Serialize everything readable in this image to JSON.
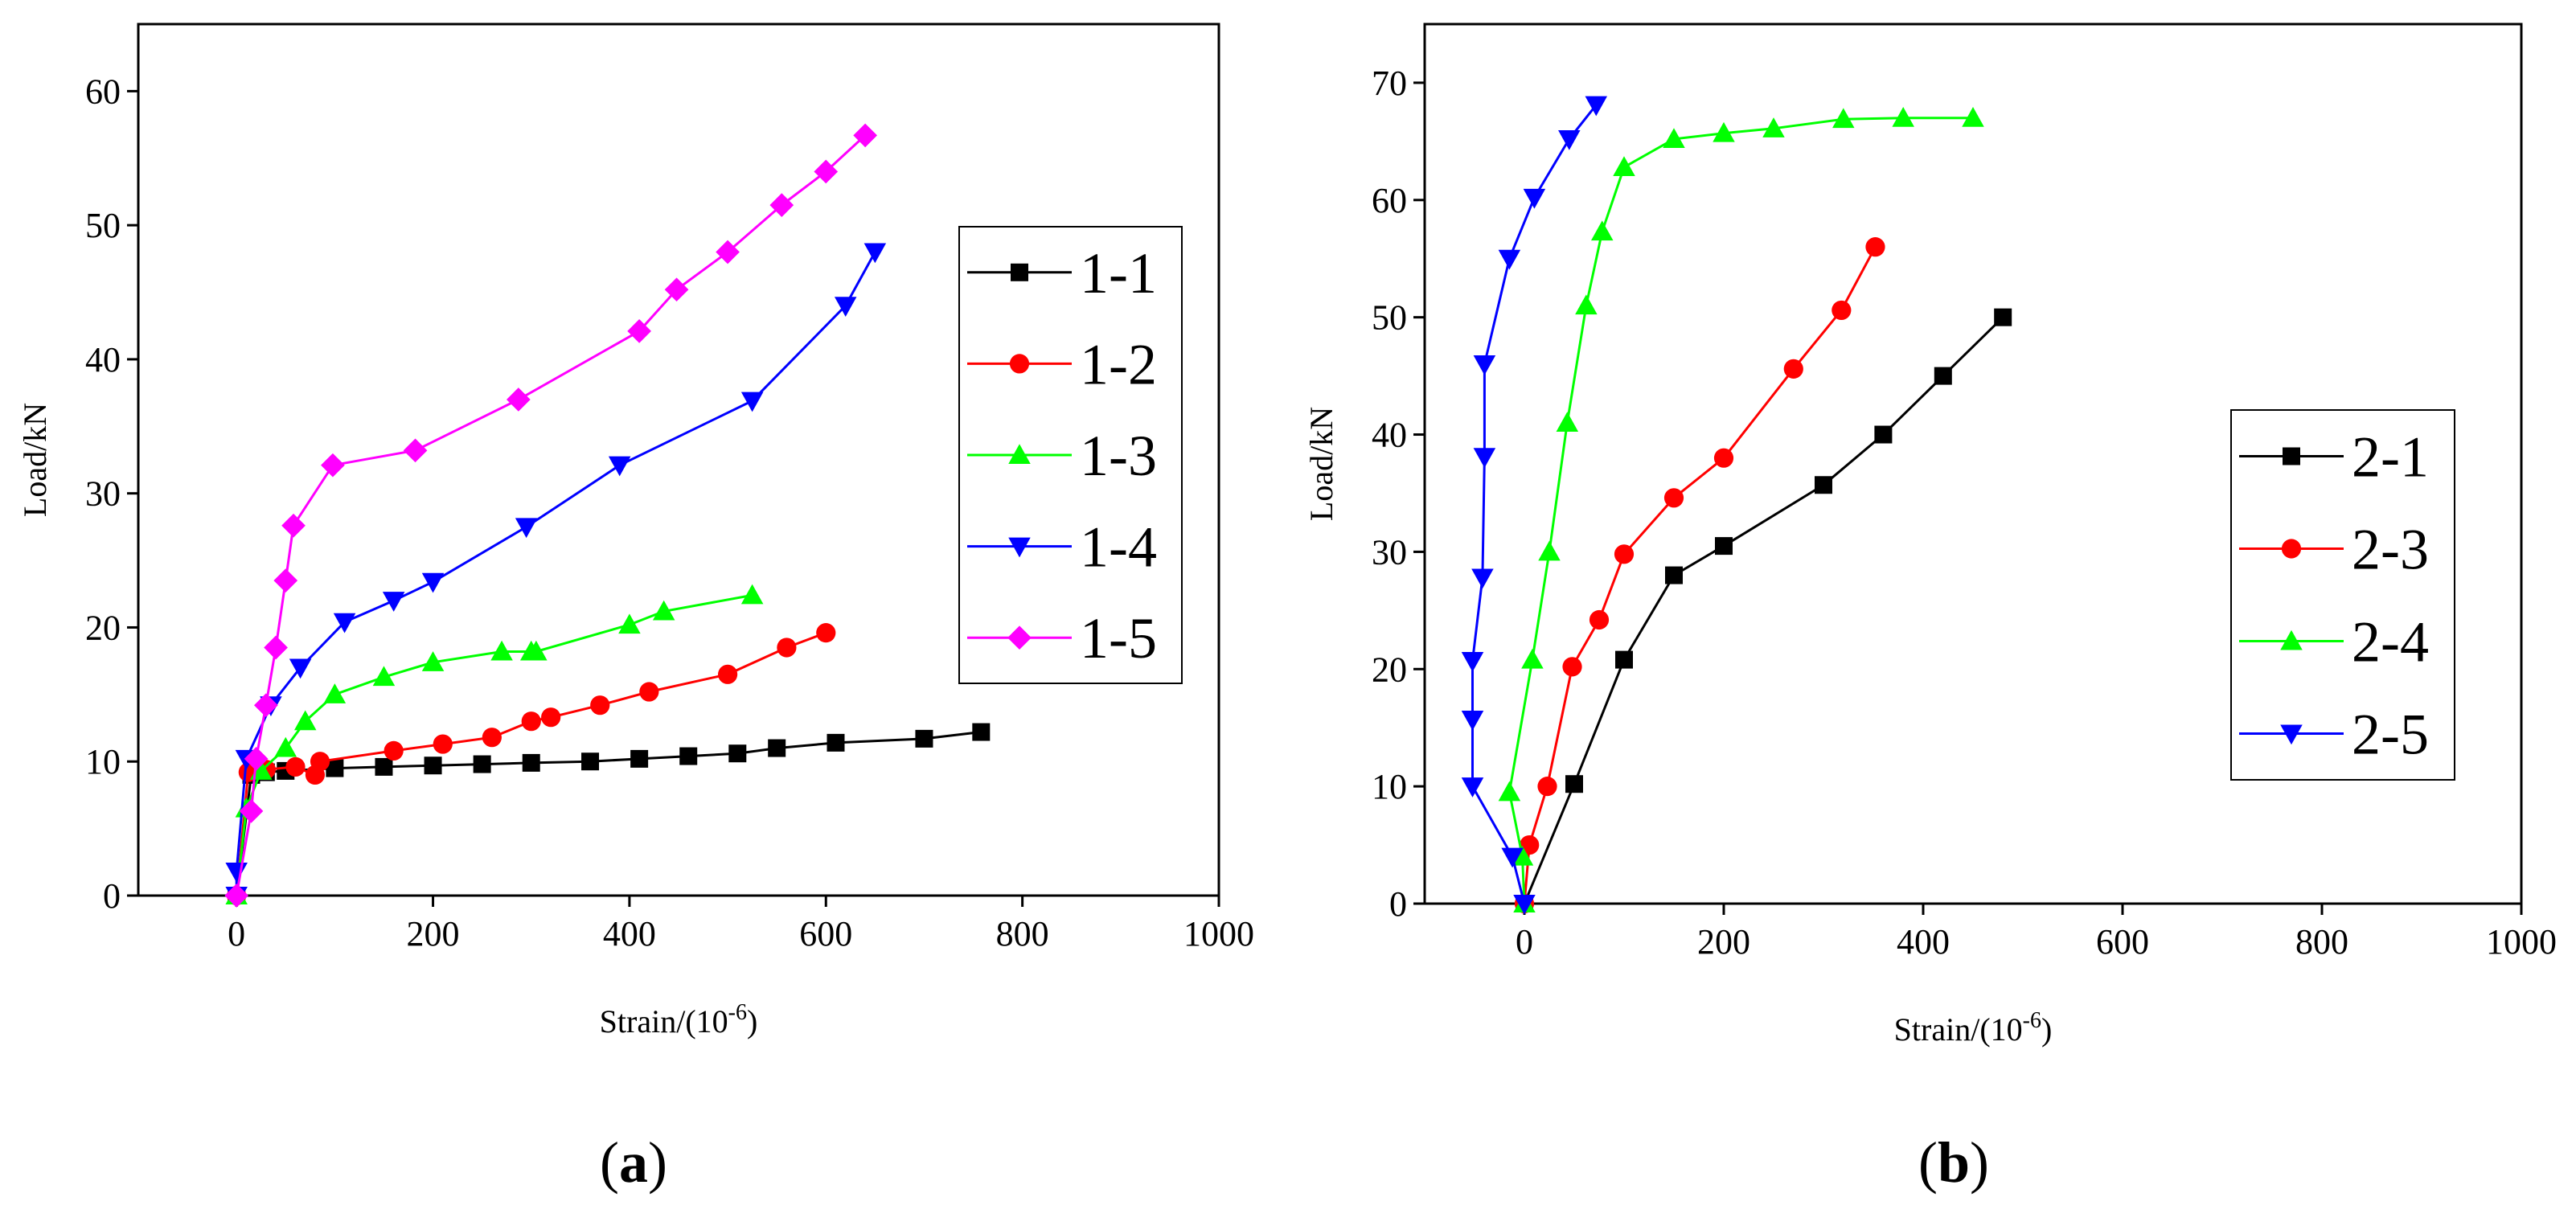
{
  "chart_data": [
    {
      "type": "line",
      "panel": "a",
      "xlabel": {
        "main": "Strain/(10",
        "exp": "-6",
        "close": ")"
      },
      "ylabel": "Load/kN",
      "xlim": [
        -100,
        1000
      ],
      "ylim": [
        0,
        65
      ],
      "xticks": [
        0,
        200,
        400,
        600,
        800,
        1000
      ],
      "yticks": [
        0,
        10,
        20,
        30,
        40,
        50,
        60
      ],
      "legend_position": "right",
      "series": [
        {
          "name": "1-1",
          "color": "#000000",
          "marker": "square",
          "x": [
            0,
            15,
            30,
            50,
            100,
            150,
            200,
            250,
            300,
            360,
            410,
            460,
            510,
            550,
            610,
            700,
            758
          ],
          "y": [
            0,
            9.0,
            9.2,
            9.3,
            9.5,
            9.6,
            9.7,
            9.8,
            9.9,
            10.0,
            10.2,
            10.4,
            10.6,
            11.0,
            11.4,
            11.7,
            12.2
          ]
        },
        {
          "name": "1-2",
          "color": "#ff0000",
          "marker": "circle",
          "x": [
            0,
            12,
            30,
            60,
            80,
            85,
            160,
            210,
            260,
            300,
            320,
            370,
            420,
            500,
            560,
            600
          ],
          "y": [
            0,
            9.2,
            9.4,
            9.6,
            9.0,
            10.0,
            10.8,
            11.3,
            11.8,
            13.0,
            13.3,
            14.2,
            15.2,
            16.5,
            18.5,
            19.6
          ]
        },
        {
          "name": "1-3",
          "color": "#00ff00",
          "marker": "triangle-up",
          "x": [
            0,
            10,
            25,
            50,
            70,
            100,
            150,
            200,
            270,
            300,
            305,
            400,
            435,
            525
          ],
          "y": [
            0,
            6.5,
            9.3,
            11.0,
            13.0,
            15.0,
            16.3,
            17.4,
            18.2,
            18.2,
            18.2,
            20.2,
            21.2,
            22.4
          ]
        },
        {
          "name": "1-4",
          "color": "#0000ff",
          "marker": "triangle-down",
          "x": [
            0,
            0,
            10,
            35,
            65,
            110,
            160,
            200,
            295,
            390,
            525,
            620,
            650
          ],
          "y": [
            0,
            1.8,
            10.2,
            14.2,
            17.0,
            20.4,
            22.0,
            23.4,
            27.5,
            32.1,
            36.9,
            44.0,
            48.0
          ]
        },
        {
          "name": "1-5",
          "color": "#ff00ff",
          "marker": "diamond",
          "x": [
            0,
            15,
            20,
            30,
            40,
            50,
            58,
            98,
            182,
            287,
            410,
            448,
            500,
            555,
            600,
            640
          ],
          "y": [
            0,
            6.3,
            10.2,
            14.2,
            18.5,
            23.5,
            27.6,
            32.1,
            33.2,
            37.0,
            42.1,
            45.2,
            48.0,
            51.5,
            54.0,
            56.7
          ]
        }
      ]
    },
    {
      "type": "line",
      "panel": "b",
      "xlabel": {
        "main": "Strain/(10",
        "exp": "-6",
        "close": ")"
      },
      "ylabel": "Load/kN",
      "xlim": [
        -100,
        1000
      ],
      "ylim": [
        0,
        75
      ],
      "xticks": [
        0,
        200,
        400,
        600,
        800,
        1000
      ],
      "yticks": [
        0,
        10,
        20,
        30,
        40,
        50,
        60,
        70
      ],
      "legend_position": "right",
      "series": [
        {
          "name": "2-1",
          "color": "#000000",
          "marker": "square",
          "x": [
            0,
            50,
            100,
            150,
            200,
            300,
            360,
            420,
            480
          ],
          "y": [
            0,
            10.2,
            20.8,
            28.0,
            30.5,
            35.7,
            40.0,
            45.0,
            50.0
          ]
        },
        {
          "name": "2-3",
          "color": "#ff0000",
          "marker": "circle",
          "x": [
            0,
            5,
            23,
            48,
            75,
            100,
            150,
            200,
            270,
            318,
            352
          ],
          "y": [
            0,
            5.0,
            10.0,
            20.2,
            24.2,
            29.8,
            34.6,
            38.0,
            45.6,
            50.6,
            56.0
          ]
        },
        {
          "name": "2-4",
          "color": "#00ff00",
          "marker": "triangle-up",
          "x": [
            0,
            -2,
            -15,
            8,
            25,
            43,
            62,
            78,
            100,
            150,
            200,
            250,
            320,
            380,
            450
          ],
          "y": [
            0,
            4.0,
            9.5,
            20.8,
            30.0,
            41.0,
            51.0,
            57.3,
            62.8,
            65.2,
            65.7,
            66.1,
            66.9,
            67.0,
            67.0
          ]
        },
        {
          "name": "2-5",
          "color": "#0000ff",
          "marker": "triangle-down",
          "x": [
            0,
            -12,
            -52,
            -52,
            -52,
            -42,
            -40,
            -40,
            -15,
            10,
            45,
            72
          ],
          "y": [
            0,
            4.0,
            10.0,
            15.7,
            20.7,
            27.8,
            38.1,
            46.0,
            55.0,
            60.2,
            65.2,
            68.1
          ]
        }
      ]
    }
  ],
  "panel_labels": {
    "a": "a",
    "b": "b"
  }
}
